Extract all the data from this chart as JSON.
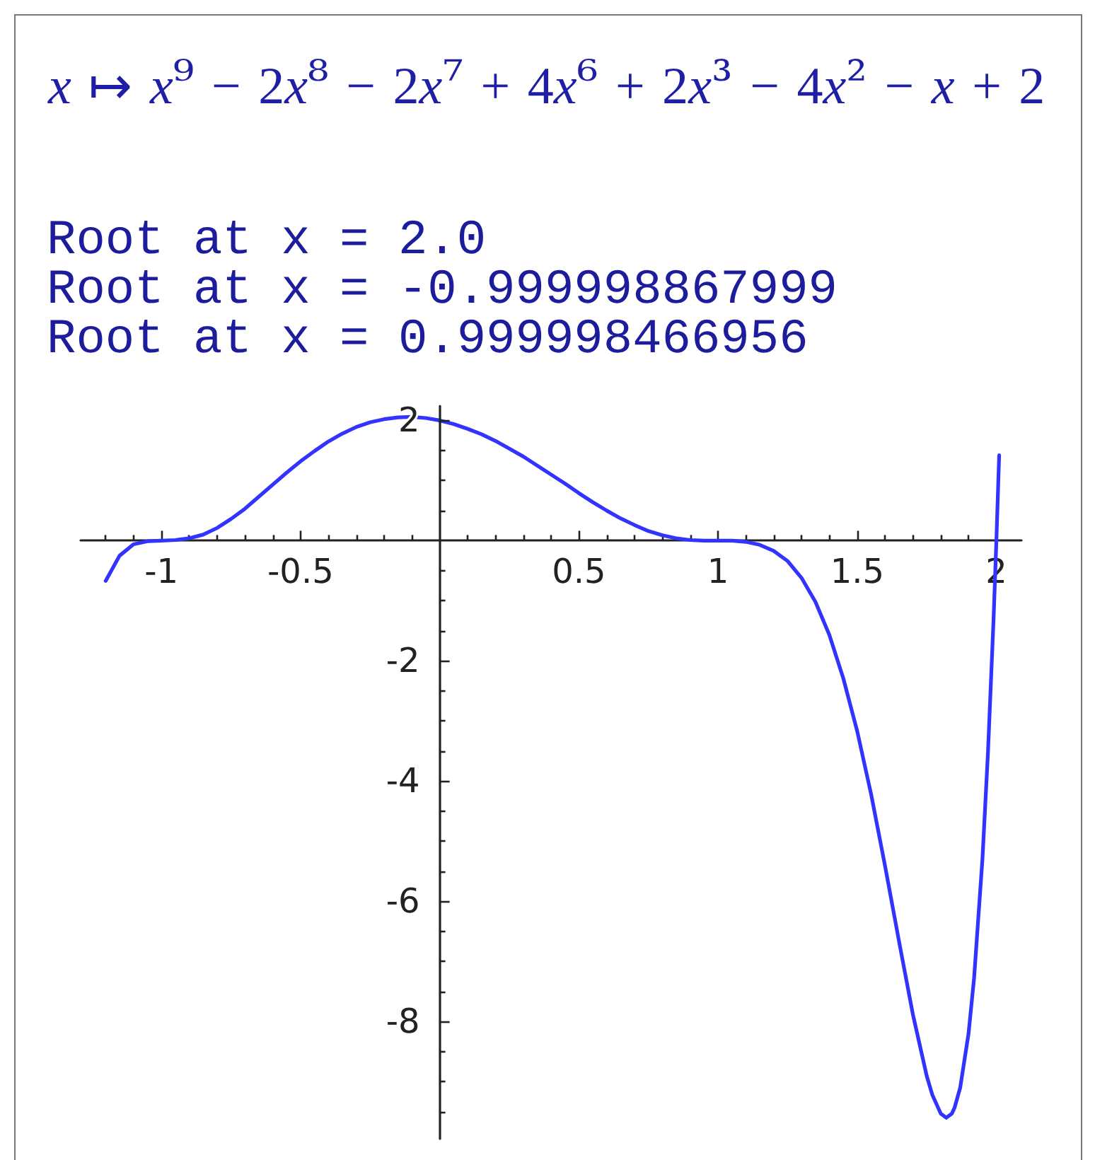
{
  "chart_data": {
    "type": "line",
    "title": "x ↦ x⁹ − 2x⁸ − 2x⁷ + 4x⁶ + 2x³ − 4x² − x + 2",
    "annotations": [
      "Root at x = 2.0",
      "Root at x = -0.999998867999",
      "Root at x = 0.999998466956"
    ],
    "x": [
      -1.2,
      -1.15,
      -1.1,
      -1.05,
      -1,
      -0.95,
      -0.9,
      -0.85,
      -0.8,
      -0.75,
      -0.7,
      -0.65,
      -0.6,
      -0.55,
      -0.5,
      -0.45,
      -0.4,
      -0.35,
      -0.3,
      -0.25,
      -0.2,
      -0.15,
      -0.1,
      -0.05,
      0,
      0.05,
      0.1,
      0.15,
      0.2,
      0.25,
      0.3,
      0.35,
      0.4,
      0.45,
      0.5,
      0.55,
      0.6,
      0.65,
      0.7,
      0.75,
      0.8,
      0.85,
      0.9,
      0.95,
      1,
      1.05,
      1.1,
      1.15,
      1.2,
      1.25,
      1.3,
      1.35,
      1.4,
      1.45,
      1.5,
      1.55,
      1.6,
      1.65,
      1.7,
      1.75,
      1.77,
      1.8,
      1.82,
      1.84,
      1.85,
      1.87,
      1.9,
      1.92,
      1.95,
      1.97,
      1.99,
      2,
      2.01
    ],
    "series": [
      {
        "color": "#3333ff",
        "values": [
          -0.67,
          -0.25,
          -0.06,
          -0.01,
          0,
          0.01,
          0.04,
          0.1,
          0.21,
          0.36,
          0.53,
          0.73,
          0.93,
          1.13,
          1.32,
          1.49,
          1.65,
          1.78,
          1.89,
          1.97,
          2.02,
          2.05,
          2.06,
          2.04,
          2,
          1.94,
          1.86,
          1.77,
          1.66,
          1.53,
          1.4,
          1.25,
          1.1,
          0.95,
          0.79,
          0.64,
          0.5,
          0.37,
          0.26,
          0.16,
          0.09,
          0.04,
          0.01,
          0,
          0,
          0,
          -0.02,
          -0.07,
          -0.17,
          -0.34,
          -0.62,
          -1.02,
          -1.57,
          -2.29,
          -3.17,
          -4.22,
          -5.41,
          -6.66,
          -7.88,
          -8.91,
          -9.22,
          -9.53,
          -9.6,
          -9.53,
          -9.43,
          -9.1,
          -8.2,
          -7.27,
          -5.29,
          -3.5,
          -1.29,
          0,
          1.42
        ]
      }
    ],
    "xlim": [
      -1.29,
      2.09
    ],
    "ylim": [
      -9.95,
      2.24
    ],
    "xticks": [
      {
        "value": -1.2,
        "label": null
      },
      {
        "value": -1.1,
        "label": null
      },
      -1,
      {
        "value": -0.9,
        "label": null
      },
      {
        "value": -0.8,
        "label": null
      },
      {
        "value": -0.7,
        "label": null
      },
      {
        "value": -0.6,
        "label": null
      },
      -0.5,
      {
        "value": -0.4,
        "label": null
      },
      {
        "value": -0.3,
        "label": null
      },
      {
        "value": -0.2,
        "label": null
      },
      {
        "value": -0.1,
        "label": null
      },
      {
        "value": 0.1,
        "label": null
      },
      {
        "value": 0.2,
        "label": null
      },
      {
        "value": 0.3,
        "label": null
      },
      {
        "value": 0.4,
        "label": null
      },
      0.5,
      {
        "value": 0.6,
        "label": null
      },
      {
        "value": 0.7,
        "label": null
      },
      {
        "value": 0.8,
        "label": null
      },
      {
        "value": 0.9,
        "label": null
      },
      1,
      {
        "value": 1.1,
        "label": null
      },
      {
        "value": 1.2,
        "label": null
      },
      {
        "value": 1.3,
        "label": null
      },
      {
        "value": 1.4,
        "label": null
      },
      1.5,
      {
        "value": 1.6,
        "label": null
      },
      {
        "value": 1.7,
        "label": null
      },
      {
        "value": 1.8,
        "label": null
      },
      {
        "value": 1.9,
        "label": null
      },
      2
    ],
    "yticks": [
      {
        "value": -9.5,
        "label": null
      },
      {
        "value": -9,
        "label": null
      },
      {
        "value": -8.5,
        "label": null
      },
      -8,
      {
        "value": -7.5,
        "label": null
      },
      {
        "value": -7,
        "label": null
      },
      {
        "value": -6.5,
        "label": null
      },
      -6,
      {
        "value": -5.5,
        "label": null
      },
      {
        "value": -5,
        "label": null
      },
      {
        "value": -4.5,
        "label": null
      },
      -4,
      {
        "value": -3.5,
        "label": null
      },
      {
        "value": -3,
        "label": null
      },
      {
        "value": -2.5,
        "label": null
      },
      -2,
      {
        "value": -1.5,
        "label": null
      },
      {
        "value": -1,
        "label": null
      },
      {
        "value": -0.5,
        "label": null
      },
      {
        "value": 0.5,
        "label": null
      },
      {
        "value": 1,
        "label": null
      },
      {
        "value": 1.5,
        "label": null
      },
      2
    ],
    "marker": "none",
    "line_style": "solid"
  }
}
